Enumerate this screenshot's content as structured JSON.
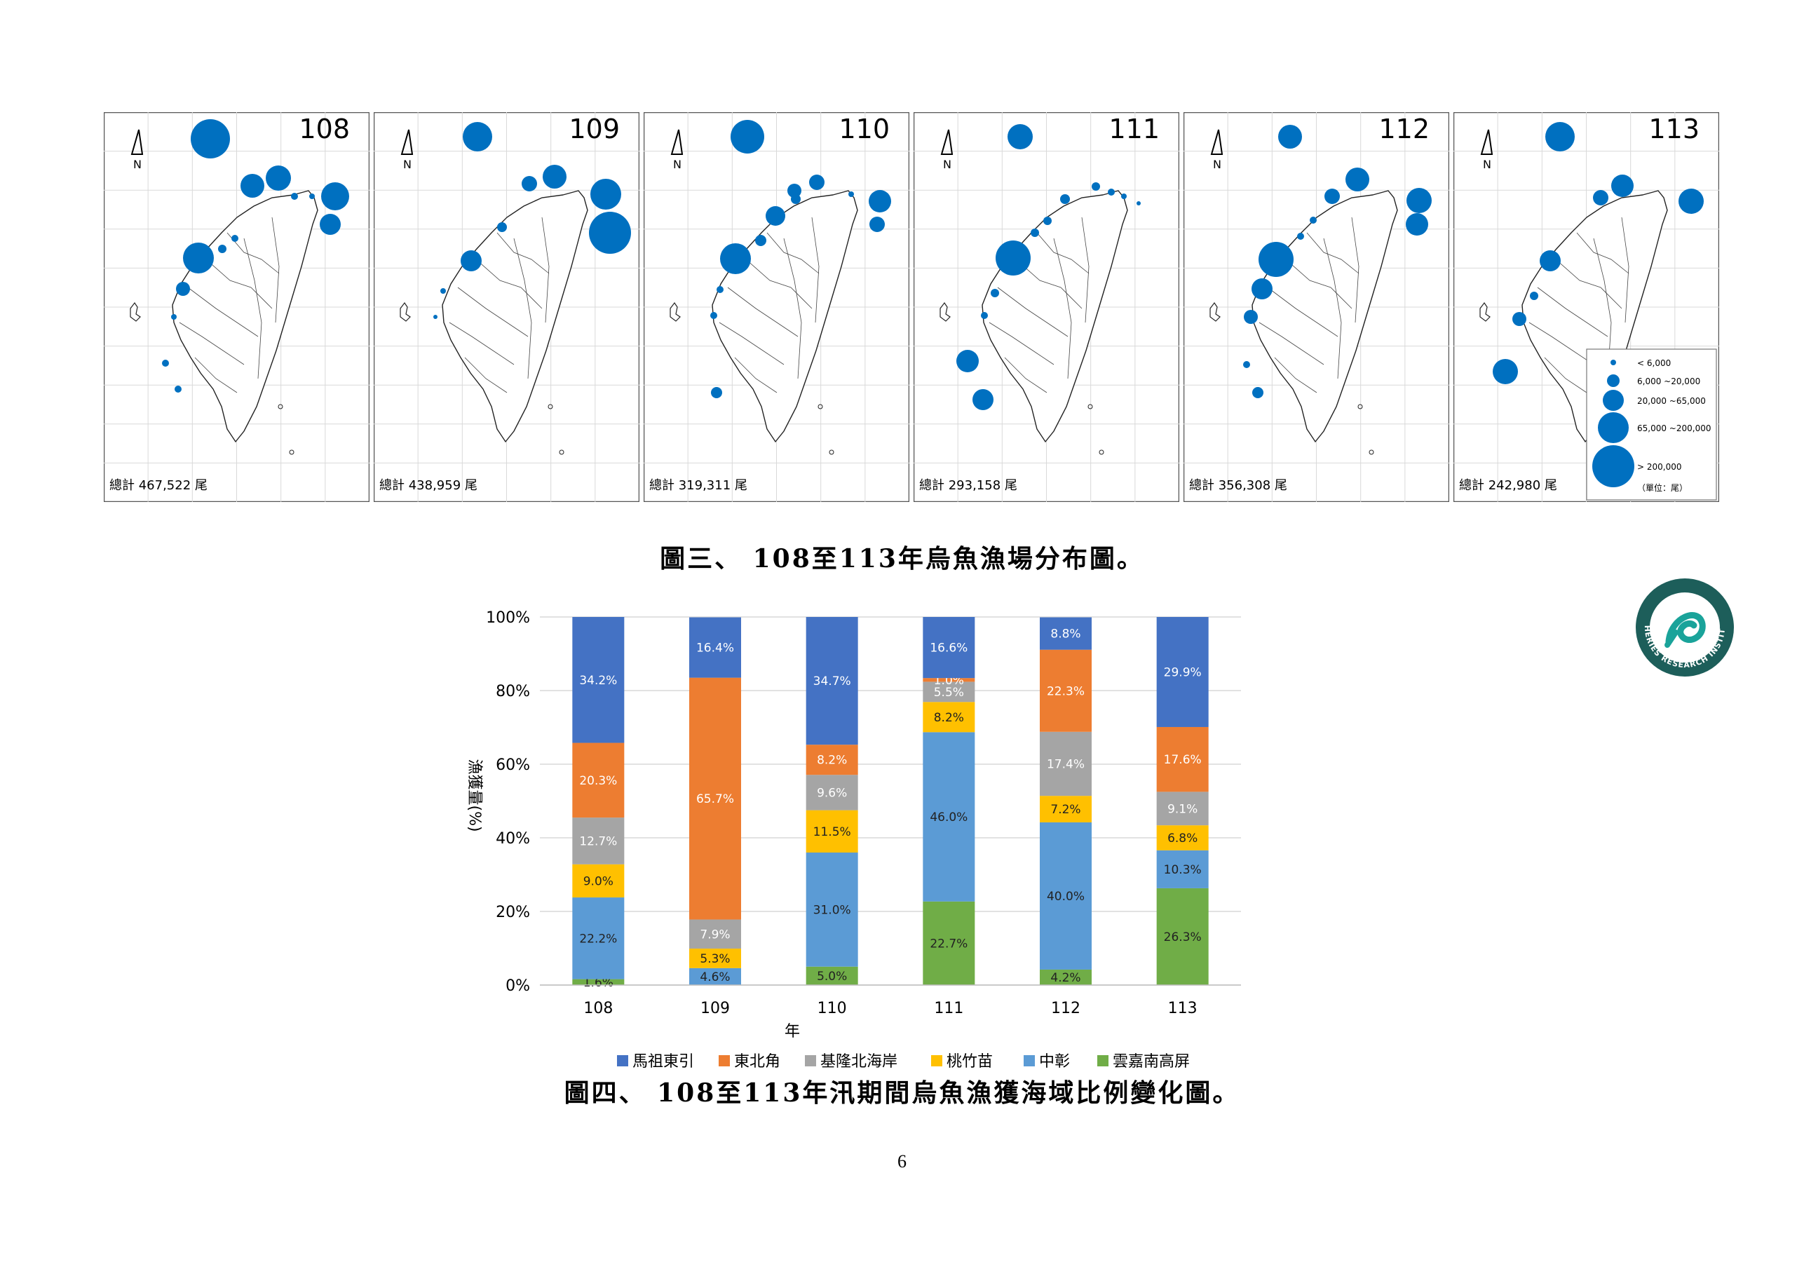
{
  "maps": {
    "panels": [
      {
        "year": "108",
        "total_label": "總計",
        "total_value": "467,522",
        "unit": "尾"
      },
      {
        "year": "109",
        "total_label": "總計",
        "total_value": "438,959",
        "unit": "尾"
      },
      {
        "year": "110",
        "total_label": "總計",
        "total_value": "319,311",
        "unit": "尾"
      },
      {
        "year": "111",
        "total_label": "總計",
        "total_value": "293,158",
        "unit": "尾"
      },
      {
        "year": "112",
        "total_label": "總計",
        "total_value": "356,308",
        "unit": "尾"
      },
      {
        "year": "113",
        "total_label": "總計",
        "total_value": "242,980",
        "unit": "尾"
      }
    ],
    "north_label": "N",
    "bubble_color": "#0070c0",
    "legend": {
      "items": [
        "< 6,000",
        "6,000 ~20,000",
        "20,000 ~65,000",
        "65,000 ~200,000",
        "> 200,000"
      ],
      "unit_note": "（單位：尾）"
    }
  },
  "fig3_caption": "圖三、 108至113年烏魚漁場分布圖。",
  "logo_text": "FISHERIES RESEARCH INSTITUTE",
  "chart_data": {
    "type": "bar",
    "stacked": true,
    "categories": [
      "108",
      "109",
      "110",
      "111",
      "112",
      "113"
    ],
    "xlabel": "年",
    "ylabel": "漁獲量(%)",
    "ylim": [
      0,
      100
    ],
    "yticks": [
      "0%",
      "20%",
      "40%",
      "60%",
      "80%",
      "100%"
    ],
    "grid": true,
    "legend_position": "bottom",
    "series": [
      {
        "name": "雲嘉南高屏",
        "color": "#70ad47",
        "values": [
          1.6,
          0,
          5.0,
          22.7,
          4.2,
          26.3
        ],
        "labels": [
          "1.6%",
          "",
          "5.0%",
          "22.7%",
          "4.2%",
          "26.3%"
        ]
      },
      {
        "name": "中彰",
        "color": "#5b9bd5",
        "values": [
          22.2,
          4.6,
          31.0,
          46.0,
          40.0,
          10.3
        ],
        "labels": [
          "22.2%",
          "4.6%",
          "31.0%",
          "46.0%",
          "40.0%",
          "10.3%"
        ]
      },
      {
        "name": "桃竹苗",
        "color": "#ffc000",
        "values": [
          9.0,
          5.3,
          11.5,
          8.2,
          7.2,
          6.8
        ],
        "labels": [
          "9.0%",
          "5.3%",
          "11.5%",
          "8.2%",
          "7.2%",
          "6.8%"
        ]
      },
      {
        "name": "基隆北海岸",
        "color": "#a5a5a5",
        "values": [
          12.7,
          7.9,
          9.6,
          5.5,
          17.4,
          9.1
        ],
        "labels": [
          "12.7%",
          "7.9%",
          "9.6%",
          "5.5%",
          "17.4%",
          "9.1%"
        ]
      },
      {
        "name": "東北角",
        "color": "#ed7d31",
        "values": [
          20.3,
          65.7,
          8.2,
          1.0,
          22.3,
          17.6
        ],
        "labels": [
          "20.3%",
          "65.7%",
          "8.2%",
          "1.0%",
          "22.3%",
          "17.6%"
        ]
      },
      {
        "name": "馬祖東引",
        "color": "#4472c4",
        "values": [
          34.2,
          16.4,
          34.7,
          16.6,
          8.8,
          29.9
        ],
        "labels": [
          "34.2%",
          "16.4%",
          "34.7%",
          "16.6%",
          "8.8%",
          "29.9%"
        ]
      }
    ],
    "legend_order": [
      "馬祖東引",
      "東北角",
      "基隆北海岸",
      "桃竹苗",
      "中彰",
      "雲嘉南高屏"
    ]
  },
  "fig4_caption": "圖四、 108至113年汛期間烏魚漁獲海域比例變化圖。",
  "page_number": "6"
}
